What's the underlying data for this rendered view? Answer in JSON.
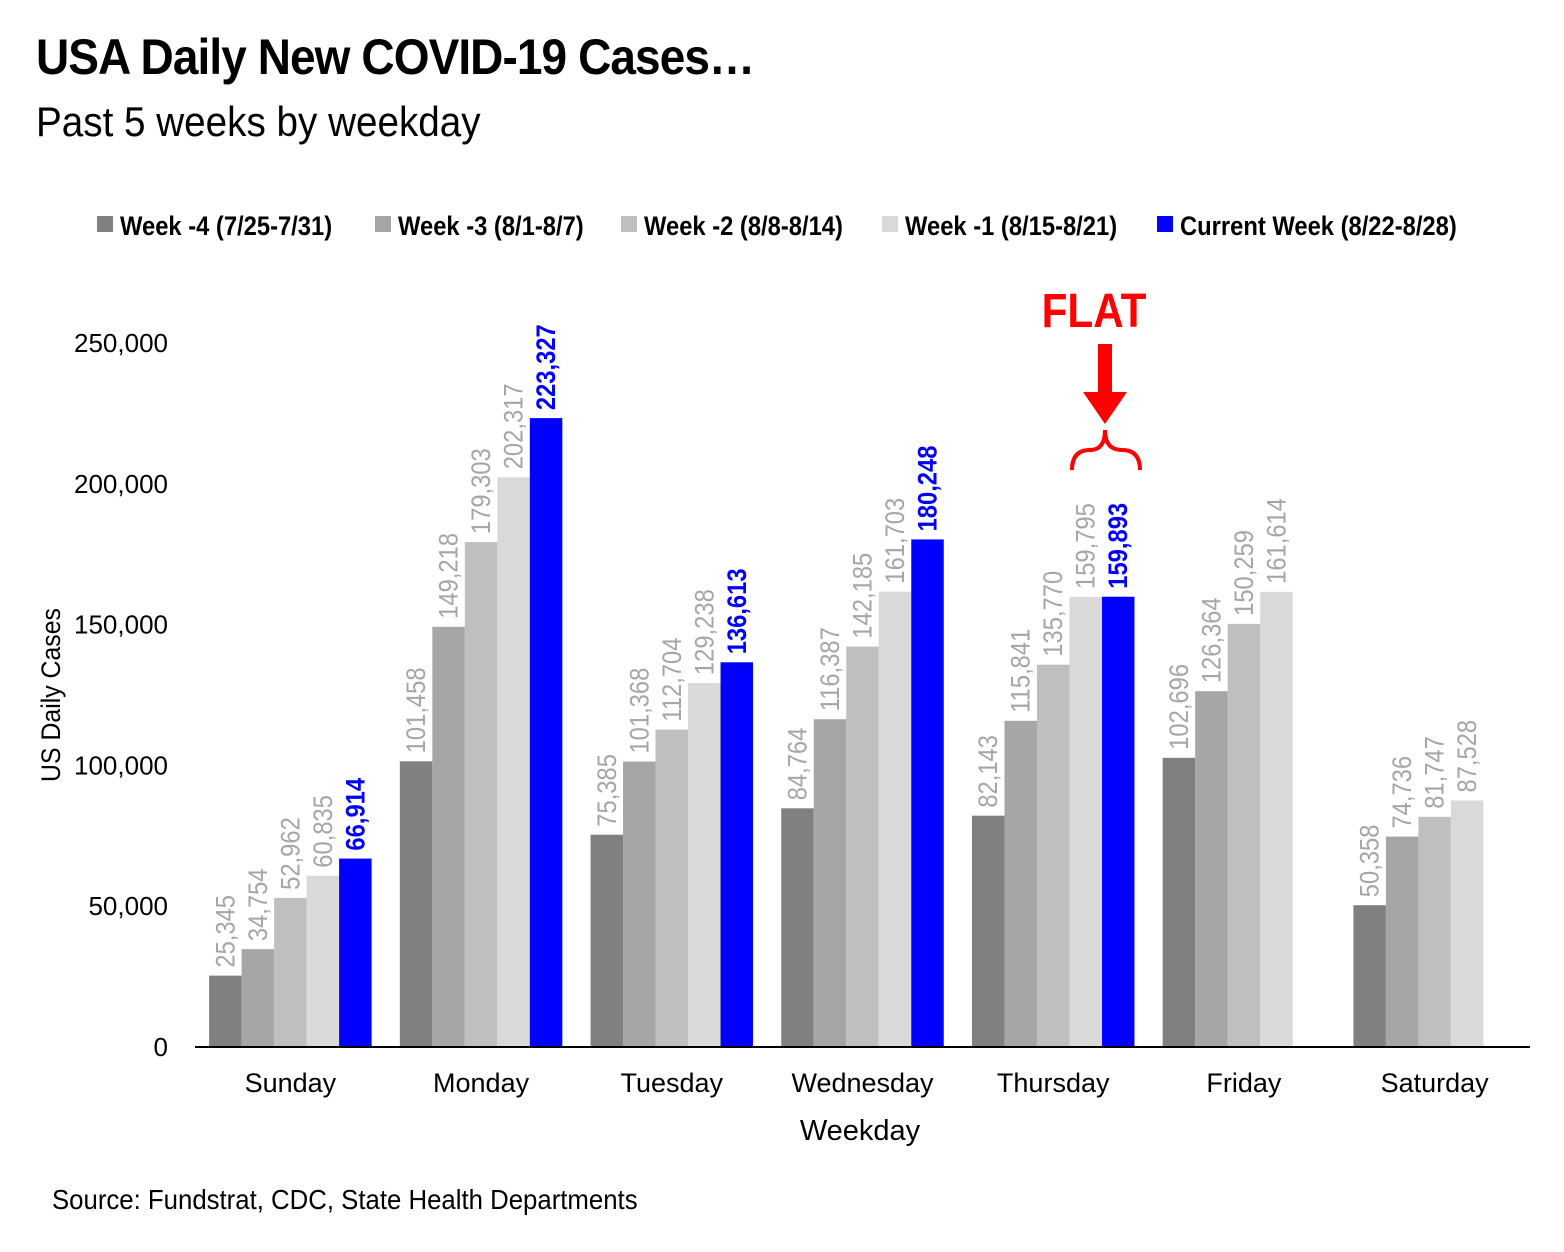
{
  "chart_data": {
    "type": "bar",
    "title": "USA Daily New COVID-19 Cases…",
    "subtitle": "Past 5 weeks by weekday",
    "xlabel": "Weekday",
    "ylabel": "US Daily Cases",
    "ylim": [
      0,
      250000
    ],
    "yticks": [
      "0",
      "50,000",
      "100,000",
      "150,000",
      "200,000",
      "250,000"
    ],
    "ytick_values": [
      0,
      50000,
      100000,
      150000,
      200000,
      250000
    ],
    "grid": false,
    "legend_position": "top",
    "categories": [
      "Sunday",
      "Monday",
      "Tuesday",
      "Wednesday",
      "Thursday",
      "Friday",
      "Saturday"
    ],
    "series": [
      {
        "name": "Week -4 (7/25-7/31)",
        "color": "#808080",
        "label_color": "#a6a6a6",
        "values": [
          25345,
          101458,
          75385,
          84764,
          82143,
          102696,
          50358
        ],
        "labels": [
          "25,345",
          "101,458",
          "75,385",
          "84,764",
          "82,143",
          "102,696",
          "50,358"
        ]
      },
      {
        "name": "Week -3 (8/1-8/7)",
        "color": "#a6a6a6",
        "label_color": "#a6a6a6",
        "values": [
          34754,
          149218,
          101368,
          116387,
          115841,
          126364,
          74736
        ],
        "labels": [
          "34,754",
          "149,218",
          "101,368",
          "116,387",
          "115,841",
          "126,364",
          "74,736"
        ]
      },
      {
        "name": "Week -2 (8/8-8/14)",
        "color": "#bfbfbf",
        "label_color": "#a6a6a6",
        "values": [
          52962,
          179303,
          112704,
          142185,
          135770,
          150259,
          81747
        ],
        "labels": [
          "52,962",
          "179,303",
          "112,704",
          "142,185",
          "135,770",
          "150,259",
          "81,747"
        ]
      },
      {
        "name": "Week -1 (8/15-8/21)",
        "color": "#d9d9d9",
        "label_color": "#a6a6a6",
        "values": [
          60835,
          202317,
          129238,
          161703,
          159795,
          161614,
          87528
        ],
        "labels": [
          "60,835",
          "202,317",
          "129,238",
          "161,703",
          "159,795",
          "161,614",
          "87,528"
        ]
      },
      {
        "name": "Current Week (8/22-8/28)",
        "color": "#0000ff",
        "label_color": "#0000ff",
        "values": [
          66914,
          223327,
          136613,
          180248,
          159893,
          null,
          null
        ],
        "labels": [
          "66,914",
          "223,327",
          "136,613",
          "180,248",
          "159,893",
          null,
          null
        ]
      }
    ],
    "annotation": {
      "text": "FLAT",
      "color": "#ff0000",
      "category": "Thursday"
    }
  },
  "source": "Source: Fundstrat, CDC,  State Health Departments"
}
